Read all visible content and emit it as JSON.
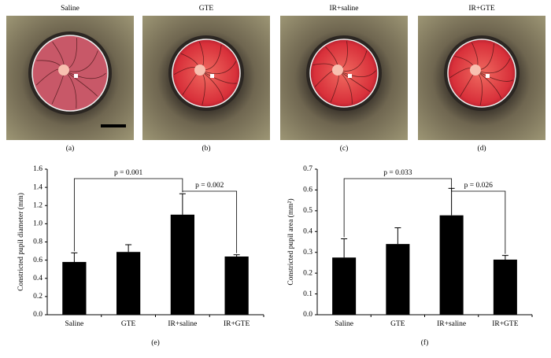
{
  "photos": [
    {
      "title": "Saline",
      "label": "(a)"
    },
    {
      "title": "GTE",
      "label": "(b)"
    },
    {
      "title": "IR+saline",
      "label": "(c)"
    },
    {
      "title": "IR+GTE",
      "label": "(d)"
    }
  ],
  "chart_data": [
    {
      "type": "bar",
      "panel_label": "(e)",
      "ylabel": "Constricted pupil diameter (mm)",
      "categories": [
        "Saline",
        "GTE",
        "IR+saline",
        "IR+GTE"
      ],
      "values": [
        0.58,
        0.69,
        1.1,
        0.64
      ],
      "errors": [
        0.1,
        0.08,
        0.23,
        0.02
      ],
      "color": "#000000",
      "ylim": [
        0,
        1.6
      ],
      "yticks": [
        {
          "value": 0,
          "label": "0.0"
        },
        0.2,
        0.4,
        0.6,
        0.8,
        {
          "value": 1,
          "label": "1.0"
        },
        1.2,
        1.4,
        1.6
      ],
      "annotations": [
        "p = 0.001",
        "p = 0.002"
      ]
    },
    {
      "type": "bar",
      "panel_label": "(f)",
      "ylabel": "Constricted pupil area (mm²)",
      "categories": [
        "Saline",
        "GTE",
        "IR+saline",
        "IR+GTE"
      ],
      "values": [
        0.275,
        0.34,
        0.478,
        0.265
      ],
      "errors": [
        0.09,
        0.078,
        0.13,
        0.02
      ],
      "color": "#000000",
      "ylim": [
        0,
        0.7
      ],
      "yticks": [
        {
          "value": 0,
          "label": "0.0"
        },
        0.1,
        0.2,
        0.3,
        0.4,
        0.5,
        0.6,
        0.7
      ],
      "annotations": [
        "p = 0.033",
        "p = 0.026"
      ]
    }
  ]
}
